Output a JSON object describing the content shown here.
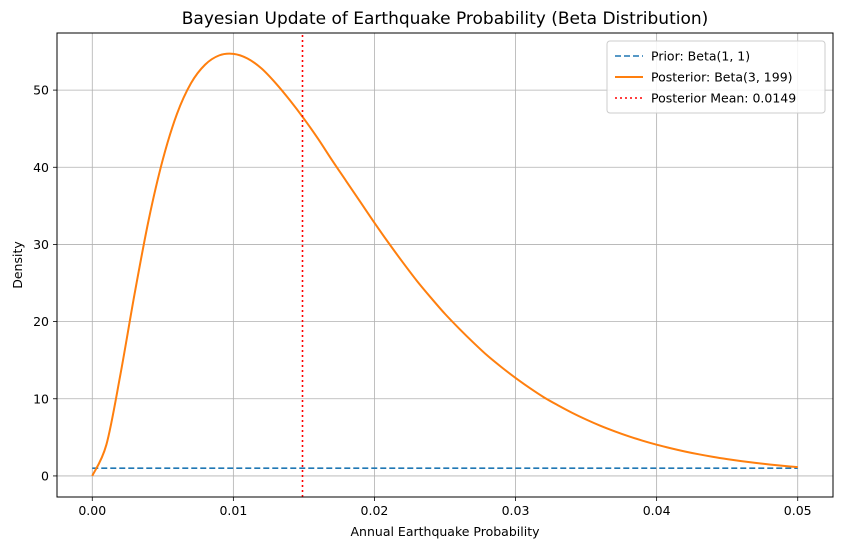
{
  "chart_data": {
    "type": "line",
    "title": "Bayesian Update of Earthquake Probability (Beta Distribution)",
    "xlabel": "Annual Earthquake Probability",
    "ylabel": "Density",
    "xlim": [
      -0.0025,
      0.0525
    ],
    "ylim": [
      -2.73,
      57.4
    ],
    "xticks": [
      "0.00",
      "0.01",
      "0.02",
      "0.03",
      "0.04",
      "0.05"
    ],
    "xtick_values": [
      0,
      0.01,
      0.02,
      0.03,
      0.04,
      0.05
    ],
    "yticks": [
      "0",
      "10",
      "20",
      "30",
      "40",
      "50"
    ],
    "ytick_values": [
      0,
      10,
      20,
      30,
      40,
      50
    ],
    "grid": true,
    "legend_position": "top-right",
    "series": [
      {
        "name": "Prior: Beta(1, 1)",
        "style": "dashed",
        "color": "#1f77b4",
        "x": [
          0,
          0.05
        ],
        "y": [
          1,
          1
        ]
      },
      {
        "name": "Posterior: Beta(3, 199)",
        "style": "solid",
        "color": "#ff7f0e",
        "x": [
          0,
          0.001,
          0.002,
          0.003,
          0.004,
          0.005,
          0.006,
          0.007,
          0.008,
          0.009,
          0.01,
          0.011,
          0.012,
          0.013,
          0.014,
          0.015,
          0.016,
          0.017,
          0.018,
          0.019,
          0.02,
          0.021,
          0.022,
          0.023,
          0.024,
          0.025,
          0.026,
          0.027,
          0.028,
          0.029,
          0.03,
          0.031,
          0.032,
          0.033,
          0.034,
          0.035,
          0.036,
          0.037,
          0.038,
          0.039,
          0.04,
          0.041,
          0.042,
          0.043,
          0.044,
          0.045,
          0.046,
          0.047,
          0.048,
          0.049,
          0.05
        ],
        "y": [
          0,
          4.05,
          13.2,
          23.6,
          33.2,
          41.0,
          46.9,
          50.9,
          53.3,
          54.5,
          54.7,
          54.1,
          52.8,
          50.9,
          48.7,
          46.3,
          43.7,
          40.9,
          38.2,
          35.5,
          32.8,
          30.2,
          27.7,
          25.3,
          23.1,
          21.0,
          19.1,
          17.3,
          15.6,
          14.1,
          12.7,
          11.4,
          10.2,
          9.16,
          8.19,
          7.31,
          6.51,
          5.8,
          5.15,
          4.57,
          4.05,
          3.59,
          3.17,
          2.8,
          2.47,
          2.18,
          1.92,
          1.69,
          1.48,
          1.3,
          1.14
        ]
      },
      {
        "name": "Posterior Mean: 0.0149",
        "style": "dotted",
        "color": "#ff0000",
        "orientation": "vertical",
        "x": [
          0.0149,
          0.0149
        ],
        "y": [
          -2.73,
          57.4
        ]
      }
    ]
  }
}
